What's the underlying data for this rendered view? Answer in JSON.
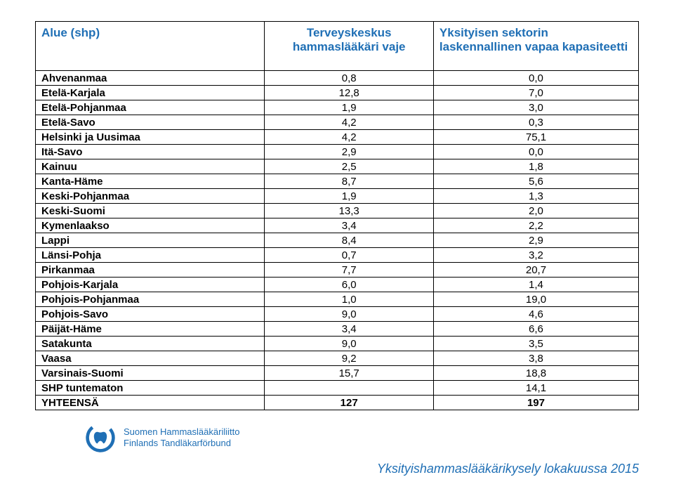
{
  "table": {
    "headers": {
      "col1": "Alue (shp)",
      "col2": "Terveyskeskus hammaslääkäri vaje",
      "col3": "Yksityisen sektorin laskennallinen vapaa kapasiteetti"
    },
    "rows": [
      {
        "region": "Ahvenanmaa",
        "v1": "0,8",
        "v2": "0,0"
      },
      {
        "region": "Etelä-Karjala",
        "v1": "12,8",
        "v2": "7,0"
      },
      {
        "region": "Etelä-Pohjanmaa",
        "v1": "1,9",
        "v2": "3,0"
      },
      {
        "region": "Etelä-Savo",
        "v1": "4,2",
        "v2": "0,3"
      },
      {
        "region": "Helsinki ja Uusimaa",
        "v1": "4,2",
        "v2": "75,1"
      },
      {
        "region": "Itä-Savo",
        "v1": "2,9",
        "v2": "0,0"
      },
      {
        "region": "Kainuu",
        "v1": "2,5",
        "v2": "1,8"
      },
      {
        "region": "Kanta-Häme",
        "v1": "8,7",
        "v2": "5,6"
      },
      {
        "region": "Keski-Pohjanmaa",
        "v1": "1,9",
        "v2": "1,3"
      },
      {
        "region": "Keski-Suomi",
        "v1": "13,3",
        "v2": "2,0"
      },
      {
        "region": "Kymenlaakso",
        "v1": "3,4",
        "v2": "2,2"
      },
      {
        "region": "Lappi",
        "v1": "8,4",
        "v2": "2,9"
      },
      {
        "region": "Länsi-Pohja",
        "v1": "0,7",
        "v2": "3,2"
      },
      {
        "region": "Pirkanmaa",
        "v1": "7,7",
        "v2": "20,7"
      },
      {
        "region": "Pohjois-Karjala",
        "v1": "6,0",
        "v2": "1,4"
      },
      {
        "region": "Pohjois-Pohjanmaa",
        "v1": "1,0",
        "v2": "19,0"
      },
      {
        "region": "Pohjois-Savo",
        "v1": "9,0",
        "v2": "4,6"
      },
      {
        "region": "Päijät-Häme",
        "v1": "3,4",
        "v2": "6,6"
      },
      {
        "region": "Satakunta",
        "v1": "9,0",
        "v2": "3,5"
      },
      {
        "region": "Vaasa",
        "v1": "9,2",
        "v2": "3,8"
      },
      {
        "region": "Varsinais-Suomi",
        "v1": "15,7",
        "v2": "18,8"
      },
      {
        "region": "SHP tuntematon",
        "v1": "",
        "v2": "14,1"
      },
      {
        "region": "YHTEENSÄ",
        "v1": "127",
        "v2": "197",
        "total": true
      }
    ]
  },
  "logo": {
    "line1": "Suomen Hammaslääkäriliitto",
    "line2": "Finlands Tandläkarförbund",
    "color": "#1f6fb5"
  },
  "footer": "Yksityishammaslääkärikysely lokakuussa 2015",
  "colors": {
    "headerText": "#1f6fb5",
    "border": "#000000",
    "body": "#000000",
    "bg": "#ffffff"
  }
}
